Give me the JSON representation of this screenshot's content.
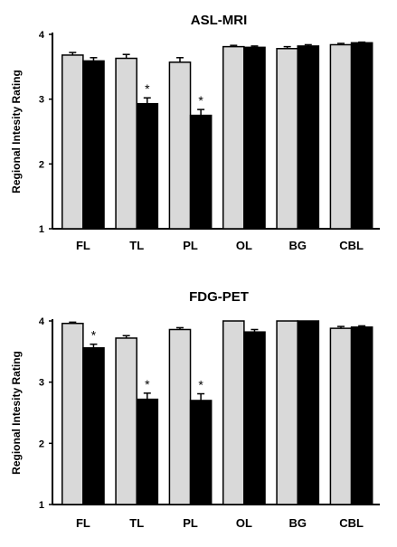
{
  "chart_data": [
    {
      "type": "bar",
      "title": "ASL-MRI",
      "ylabel": "Regional Intesity Rating",
      "categories": [
        "FL",
        "TL",
        "PL",
        "OL",
        "BG",
        "CBL"
      ],
      "ylim": [
        1,
        4
      ],
      "yticks": [
        "1",
        "2",
        "3",
        "4"
      ],
      "series": [
        {
          "color": "#d9d9d9",
          "values": [
            3.68,
            3.63,
            3.57,
            3.81,
            3.78,
            3.84
          ],
          "errors": [
            0.04,
            0.06,
            0.07,
            0.02,
            0.03,
            0.02
          ],
          "marks": [
            "",
            "",
            "",
            "",
            "",
            ""
          ]
        },
        {
          "color": "#000000",
          "values": [
            3.59,
            2.93,
            2.75,
            3.8,
            3.82,
            3.87
          ],
          "errors": [
            0.05,
            0.09,
            0.09,
            0.02,
            0.02,
            0.01
          ],
          "marks": [
            "",
            "*",
            "*",
            "",
            "",
            ""
          ]
        }
      ],
      "grid": false
    },
    {
      "type": "bar",
      "title": "FDG-PET",
      "ylabel": "Regional Intesity Rating",
      "categories": [
        "FL",
        "TL",
        "PL",
        "OL",
        "BG",
        "CBL"
      ],
      "ylim": [
        1,
        4
      ],
      "yticks": [
        "1",
        "2",
        "3",
        "4"
      ],
      "series": [
        {
          "color": "#d9d9d9",
          "values": [
            3.96,
            3.72,
            3.86,
            4.0,
            4.0,
            3.88
          ],
          "errors": [
            0.02,
            0.04,
            0.03,
            0.0,
            0.0,
            0.03
          ],
          "marks": [
            "",
            "",
            "",
            "",
            "",
            ""
          ]
        },
        {
          "color": "#000000",
          "values": [
            3.56,
            2.72,
            2.7,
            3.82,
            4.0,
            3.9
          ],
          "errors": [
            0.06,
            0.1,
            0.11,
            0.04,
            0.0,
            0.02
          ],
          "marks": [
            "*",
            "*",
            "*",
            "",
            "",
            ""
          ]
        }
      ],
      "grid": false
    }
  ]
}
